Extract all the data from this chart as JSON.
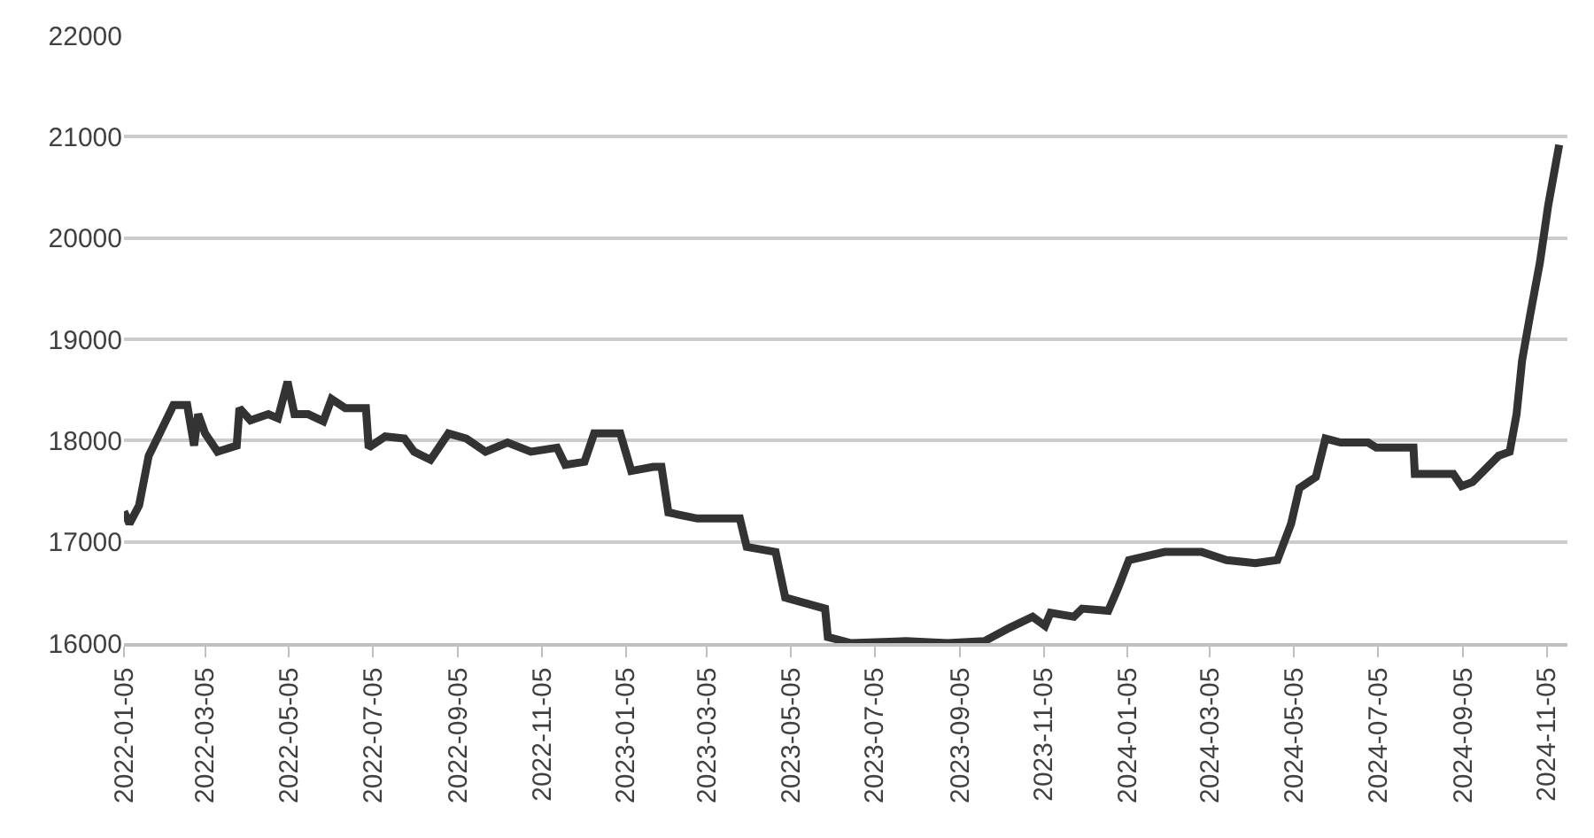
{
  "chart_data": {
    "type": "line",
    "grid": "y",
    "marker": "none",
    "line_style": "solid",
    "xlim": [
      "2022-01-05",
      "2024-11-20"
    ],
    "xticks": [
      "2022-01-05",
      "2022-03-05",
      "2022-05-05",
      "2022-07-05",
      "2022-09-05",
      "2022-11-05",
      "2023-01-05",
      "2023-03-05",
      "2023-05-05",
      "2023-07-05",
      "2023-09-05",
      "2023-11-05",
      "2024-01-05",
      "2024-03-05",
      "2024-05-05",
      "2024-07-05",
      "2024-09-05",
      "2024-11-05"
    ],
    "ylim": [
      16000,
      22000
    ],
    "yticks": [
      16000,
      17000,
      18000,
      19000,
      20000,
      21000,
      22000
    ],
    "x": [
      "2022-01-05",
      "2022-01-09",
      "2022-01-16",
      "2022-01-23",
      "2022-01-31",
      "2022-02-10",
      "2022-02-20",
      "2022-02-25",
      "2022-02-28",
      "2022-03-05",
      "2022-03-14",
      "2022-03-28",
      "2022-03-30",
      "2022-04-07",
      "2022-04-20",
      "2022-04-27",
      "2022-05-04",
      "2022-05-09",
      "2022-05-19",
      "2022-05-30",
      "2022-06-05",
      "2022-06-15",
      "2022-06-30",
      "2022-07-02",
      "2022-07-14",
      "2022-07-28",
      "2022-08-04",
      "2022-08-16",
      "2022-08-29",
      "2022-09-11",
      "2022-09-25",
      "2022-10-11",
      "2022-10-28",
      "2022-11-16",
      "2022-11-22",
      "2022-12-06",
      "2022-12-13",
      "2023-01-01",
      "2023-01-09",
      "2023-01-25",
      "2023-01-31",
      "2023-02-05",
      "2023-02-26",
      "2023-03-29",
      "2023-04-03",
      "2023-04-24",
      "2023-05-01",
      "2023-05-30",
      "2023-06-01",
      "2023-06-18",
      "2023-07-28",
      "2023-08-27",
      "2023-09-23",
      "2023-10-11",
      "2023-10-28",
      "2023-11-06",
      "2023-11-10",
      "2023-11-27",
      "2023-12-03",
      "2023-12-22",
      "2023-12-29",
      "2024-01-06",
      "2024-02-01",
      "2024-02-28",
      "2024-03-17",
      "2024-04-07",
      "2024-04-23",
      "2024-05-03",
      "2024-05-09",
      "2024-05-21",
      "2024-05-28",
      "2024-06-08",
      "2024-06-28",
      "2024-07-04",
      "2024-07-31",
      "2024-08-01",
      "2024-08-29",
      "2024-09-04",
      "2024-09-12",
      "2024-10-01",
      "2024-10-09",
      "2024-10-14",
      "2024-10-18",
      "2024-10-24",
      "2024-10-31",
      "2024-11-06",
      "2024-11-14"
    ],
    "series": [
      {
        "color": "#333333",
        "values": [
          17300,
          17180,
          17360,
          17850,
          18070,
          18350,
          18350,
          17950,
          18260,
          18070,
          17890,
          17950,
          18320,
          18200,
          18260,
          18220,
          18580,
          18260,
          18260,
          18190,
          18410,
          18320,
          18320,
          17930,
          18040,
          18020,
          17890,
          17810,
          18070,
          18020,
          17890,
          17980,
          17890,
          17930,
          17760,
          17790,
          18070,
          18070,
          17700,
          17740,
          17740,
          17290,
          17230,
          17230,
          16950,
          16900,
          16450,
          16340,
          16060,
          16000,
          16020,
          16000,
          16020,
          16150,
          16260,
          16170,
          16300,
          16260,
          16340,
          16320,
          16540,
          16820,
          16900,
          16900,
          16820,
          16790,
          16820,
          17180,
          17530,
          17640,
          18020,
          17980,
          17980,
          17930,
          17930,
          17670,
          17670,
          17550,
          17590,
          17850,
          17890,
          18260,
          18790,
          19250,
          19760,
          20320,
          20920
        ]
      }
    ]
  }
}
